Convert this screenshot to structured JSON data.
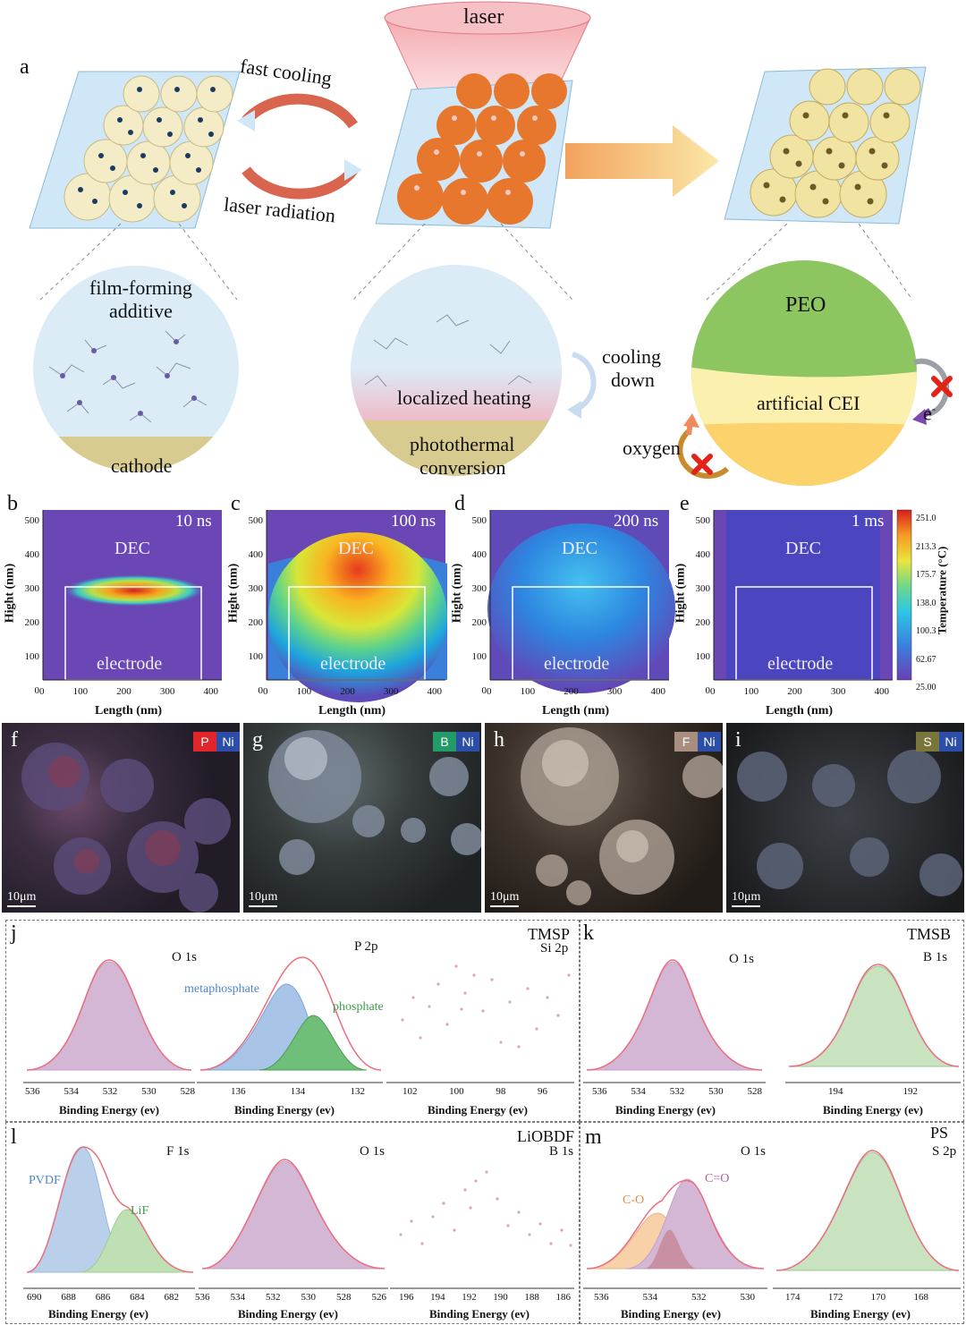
{
  "panel_a": {
    "letter": "a",
    "laser": "laser",
    "fast_cooling": "fast cooling",
    "laser_radiation": "laser radiation",
    "film_forming_line1": "film-forming",
    "film_forming_line2": "additive",
    "cathode": "cathode",
    "localized_heating": "localized heating",
    "photothermal_line1": "photothermal",
    "photothermal_line2": "conversion",
    "cooling_line1": "cooling",
    "cooling_line2": "down",
    "peo": "PEO",
    "artificial_cei": "artificial CEI",
    "oxygen": "oxygen",
    "electron": "e",
    "electron_sup": "-"
  },
  "heatmaps": [
    {
      "letter": "b",
      "time": "10 ns",
      "top": "DEC",
      "bottom": "electrode"
    },
    {
      "letter": "c",
      "time": "100 ns",
      "top": "DEC",
      "bottom": "electrode"
    },
    {
      "letter": "d",
      "time": "200 ns",
      "top": "DEC",
      "bottom": "electrode"
    },
    {
      "letter": "e",
      "time": "1 ms",
      "top": "DEC",
      "bottom": "electrode"
    }
  ],
  "heatmap_axes": {
    "ylabel": "Hight (nm)",
    "xlabel": "Length (nm)",
    "yticks": [
      "500",
      "400",
      "300",
      "200",
      "100",
      "0"
    ],
    "xticks": [
      "0",
      "100",
      "200",
      "300",
      "400"
    ]
  },
  "colorbar": {
    "label": "Temperature (°C)",
    "ticks": [
      "251.0",
      "213.3",
      "175.7",
      "138.0",
      "100.3",
      "62.67",
      "25.00"
    ]
  },
  "sem": [
    {
      "letter": "f",
      "el1": "P",
      "el1_color": "#e0262b",
      "el2": "Ni",
      "el2_color": "#2c4ea8",
      "scale": "10μm"
    },
    {
      "letter": "g",
      "el1": "B",
      "el1_color": "#239b69",
      "el2": "Ni",
      "el2_color": "#2c4ea8",
      "scale": "10μm"
    },
    {
      "letter": "h",
      "el1": "F",
      "el1_color": "#a88e7f",
      "el2": "Ni",
      "el2_color": "#2c4ea8",
      "scale": "10μm"
    },
    {
      "letter": "i",
      "el1": "S",
      "el1_color": "#79763c",
      "el2": "Ni",
      "el2_color": "#2c4ea8",
      "scale": "10μm"
    }
  ],
  "xps": {
    "xlabel": "Binding Energy (ev)",
    "j": {
      "letter": "j",
      "title": "TMSP",
      "plots": [
        {
          "label": "O 1s",
          "ticks": [
            "536",
            "534",
            "532",
            "530",
            "528"
          ]
        },
        {
          "label": "P 2p",
          "ticks": [
            "136",
            "134",
            "132"
          ],
          "comp1": "metaphosphate",
          "comp2": "phosphate"
        },
        {
          "label": "Si 2p",
          "ticks": [
            "102",
            "100",
            "98",
            "96"
          ]
        }
      ]
    },
    "k": {
      "letter": "k",
      "title": "TMSB",
      "plots": [
        {
          "label": "O 1s",
          "ticks": [
            "536",
            "534",
            "532",
            "530",
            "528"
          ]
        },
        {
          "label": "B 1s",
          "ticks": [
            "194",
            "192"
          ]
        }
      ]
    },
    "l": {
      "letter": "l",
      "title": "LiOBDF",
      "plots": [
        {
          "label": "F 1s",
          "ticks": [
            "690",
            "688",
            "686",
            "684",
            "682"
          ],
          "comp1": "PVDF",
          "comp2": "LiF"
        },
        {
          "label": "O 1s",
          "ticks": [
            "536",
            "534",
            "532",
            "530",
            "528",
            "526"
          ]
        },
        {
          "label": "B 1s",
          "ticks": [
            "196",
            "194",
            "192",
            "190",
            "188",
            "186"
          ]
        }
      ]
    },
    "m": {
      "letter": "m",
      "title": "PS",
      "plots": [
        {
          "label": "O 1s",
          "ticks": [
            "536",
            "534",
            "532",
            "530"
          ],
          "comp1": "C-O",
          "comp2": "C=O"
        },
        {
          "label": "S 2p",
          "ticks": [
            "174",
            "172",
            "170",
            "168"
          ]
        }
      ]
    }
  }
}
